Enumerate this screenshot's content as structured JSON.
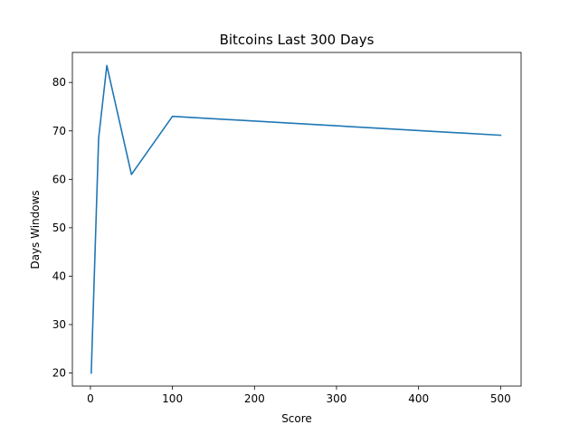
{
  "chart_data": {
    "type": "line",
    "title": "Bitcoins Last 300 Days",
    "xlabel": "Score",
    "ylabel": "Days Windows",
    "xlim": [
      -22,
      525
    ],
    "ylim": [
      17.3,
      86.2
    ],
    "x_ticks": [
      0,
      100,
      200,
      300,
      400,
      500
    ],
    "y_ticks": [
      20,
      30,
      40,
      50,
      60,
      70,
      80
    ],
    "grid": false,
    "legend": "none",
    "series": [
      {
        "color": "#1f77b4",
        "x": [
          1,
          10,
          20,
          50,
          100,
          500
        ],
        "y": [
          20,
          68.5,
          83.5,
          61,
          73,
          69.1
        ]
      }
    ]
  }
}
